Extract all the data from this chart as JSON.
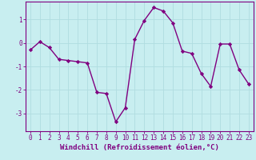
{
  "x": [
    0,
    1,
    2,
    3,
    4,
    5,
    6,
    7,
    8,
    9,
    10,
    11,
    12,
    13,
    14,
    15,
    16,
    17,
    18,
    19,
    20,
    21,
    22,
    23
  ],
  "y": [
    -0.3,
    0.05,
    -0.2,
    -0.7,
    -0.75,
    -0.8,
    -0.85,
    -2.1,
    -2.15,
    -3.35,
    -2.75,
    0.15,
    0.95,
    1.5,
    1.35,
    0.85,
    -0.35,
    -0.45,
    -1.3,
    -1.85,
    -0.05,
    -0.05,
    -1.15,
    -1.75
  ],
  "line_color": "#800080",
  "marker": "D",
  "marker_size": 2.2,
  "bg_color": "#c8eef0",
  "grid_color": "#b0dde0",
  "spine_color": "#800080",
  "xlabel": "Windchill (Refroidissement éolien,°C)",
  "xlim": [
    -0.5,
    23.5
  ],
  "ylim": [
    -3.75,
    1.75
  ],
  "yticks": [
    -3,
    -2,
    -1,
    0,
    1
  ],
  "xticks": [
    0,
    1,
    2,
    3,
    4,
    5,
    6,
    7,
    8,
    9,
    10,
    11,
    12,
    13,
    14,
    15,
    16,
    17,
    18,
    19,
    20,
    21,
    22,
    23
  ],
  "tick_fontsize": 5.5,
  "xlabel_fontsize": 6.5,
  "line_width": 1.0
}
